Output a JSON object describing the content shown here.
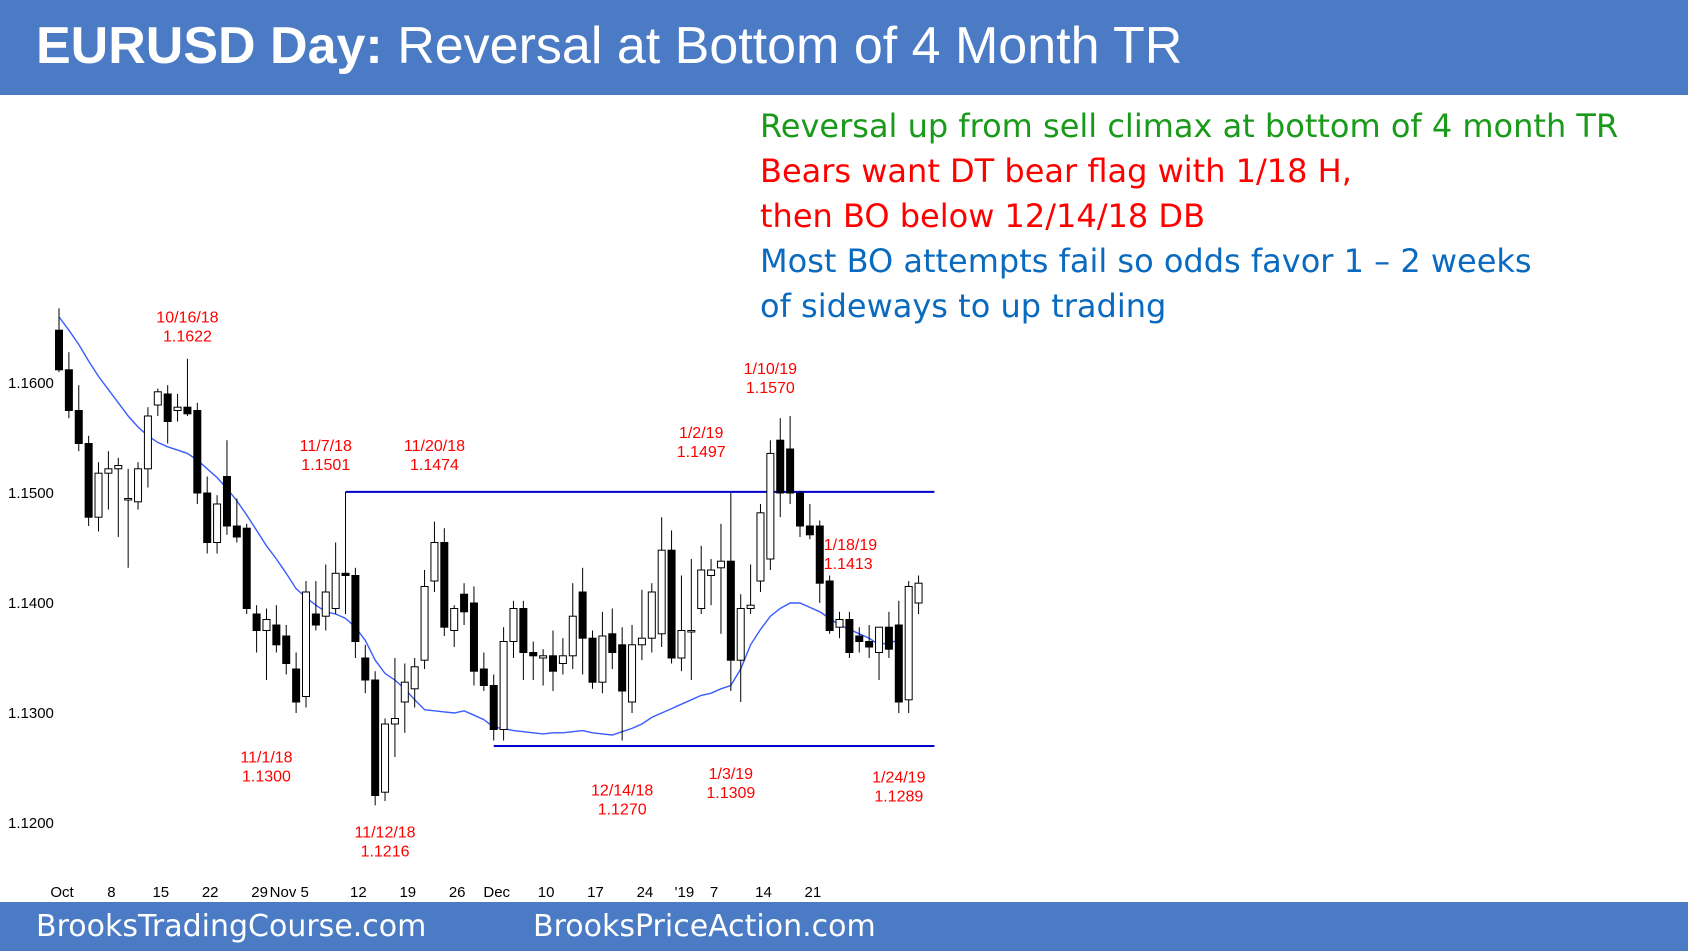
{
  "header": {
    "symbol": "EURUSD Day:",
    "title": "Reversal at Bottom of 4 Month TR"
  },
  "footer": {
    "left": "BrooksTradingCourse.com",
    "right": "BrooksPriceAction.com"
  },
  "notes": [
    {
      "text": "Reversal up from sell climax at bottom of 4 month TR",
      "color": "#1a9a1a"
    },
    {
      "text": "Bears want DT bear flag with 1/18 H,",
      "color": "#ff0000"
    },
    {
      "text": "then BO below 12/14/18 DB",
      "color": "#ff0000"
    },
    {
      "text": "Most BO attempts fail so odds favor 1 – 2 weeks",
      "color": "#0a6abf"
    },
    {
      "text": "of sideways to up trading",
      "color": "#0a6abf"
    }
  ],
  "chart_data": {
    "type": "candlestick",
    "y_ticks": [
      "1.1200",
      "1.1300",
      "1.1400",
      "1.1500",
      "1.1600"
    ],
    "ylim": [
      1.114,
      1.169
    ],
    "x_labels": [
      {
        "i": 0,
        "label": "Oct"
      },
      {
        "i": 5,
        "label": "8"
      },
      {
        "i": 10,
        "label": "15"
      },
      {
        "i": 15,
        "label": "22"
      },
      {
        "i": 20,
        "label": "29"
      },
      {
        "i": 23,
        "label": "Nov 5"
      },
      {
        "i": 30,
        "label": "12"
      },
      {
        "i": 35,
        "label": "19"
      },
      {
        "i": 40,
        "label": "26"
      },
      {
        "i": 44,
        "label": "Dec"
      },
      {
        "i": 49,
        "label": "10"
      },
      {
        "i": 54,
        "label": "17"
      },
      {
        "i": 59,
        "label": "24"
      },
      {
        "i": 63,
        "label": "'19"
      },
      {
        "i": 66,
        "label": "7"
      },
      {
        "i": 71,
        "label": "14"
      },
      {
        "i": 76,
        "label": "21"
      }
    ],
    "candles": [
      [
        1.1648,
        1.1668,
        1.161,
        1.1612
      ],
      [
        1.1612,
        1.1628,
        1.1568,
        1.1575
      ],
      [
        1.1575,
        1.1598,
        1.1538,
        1.1545
      ],
      [
        1.1545,
        1.1552,
        1.147,
        1.1478
      ],
      [
        1.1478,
        1.1528,
        1.1465,
        1.1518
      ],
      [
        1.1518,
        1.1538,
        1.1485,
        1.1522
      ],
      [
        1.1522,
        1.1532,
        1.146,
        1.1525
      ],
      [
        1.1495,
        1.1522,
        1.1432,
        1.1495
      ],
      [
        1.1492,
        1.1528,
        1.1485,
        1.1522
      ],
      [
        1.1522,
        1.1578,
        1.1505,
        1.157
      ],
      [
        1.158,
        1.1595,
        1.157,
        1.1592
      ],
      [
        1.159,
        1.1598,
        1.1545,
        1.1565
      ],
      [
        1.1575,
        1.159,
        1.1565,
        1.1578
      ],
      [
        1.1578,
        1.1622,
        1.157,
        1.1572
      ],
      [
        1.1575,
        1.1582,
        1.149,
        1.15
      ],
      [
        1.15,
        1.1515,
        1.1445,
        1.1455
      ],
      [
        1.1455,
        1.1498,
        1.1445,
        1.149
      ],
      [
        1.1515,
        1.1548,
        1.1462,
        1.147
      ],
      [
        1.147,
        1.1495,
        1.1455,
        1.146
      ],
      [
        1.1468,
        1.1472,
        1.139,
        1.1395
      ],
      [
        1.139,
        1.1398,
        1.1355,
        1.1375
      ],
      [
        1.1375,
        1.1395,
        1.133,
        1.1385
      ],
      [
        1.138,
        1.1398,
        1.1355,
        1.1362
      ],
      [
        1.137,
        1.138,
        1.1335,
        1.1345
      ],
      [
        1.134,
        1.1355,
        1.13,
        1.131
      ],
      [
        1.1315,
        1.142,
        1.1305,
        1.141
      ],
      [
        1.139,
        1.142,
        1.1375,
        1.138
      ],
      [
        1.1388,
        1.1435,
        1.1375,
        1.141
      ],
      [
        1.1395,
        1.1455,
        1.139,
        1.1427
      ],
      [
        1.1427,
        1.1501,
        1.139,
        1.1425
      ],
      [
        1.1425,
        1.1432,
        1.135,
        1.1365
      ],
      [
        1.135,
        1.1362,
        1.1318,
        1.133
      ],
      [
        1.133,
        1.1338,
        1.1216,
        1.1225
      ],
      [
        1.1228,
        1.1295,
        1.122,
        1.129
      ],
      [
        1.129,
        1.135,
        1.126,
        1.1295
      ],
      [
        1.131,
        1.1345,
        1.1282,
        1.1328
      ],
      [
        1.1322,
        1.135,
        1.1305,
        1.1342
      ],
      [
        1.1348,
        1.143,
        1.134,
        1.1415
      ],
      [
        1.142,
        1.1474,
        1.141,
        1.1455
      ],
      [
        1.1455,
        1.1468,
        1.137,
        1.1378
      ],
      [
        1.1375,
        1.1398,
        1.136,
        1.1395
      ],
      [
        1.1408,
        1.1418,
        1.138,
        1.1392
      ],
      [
        1.14,
        1.1415,
        1.1325,
        1.1338
      ],
      [
        1.134,
        1.1355,
        1.132,
        1.1325
      ],
      [
        1.1325,
        1.1335,
        1.1275,
        1.1285
      ],
      [
        1.1285,
        1.1378,
        1.1275,
        1.1365
      ],
      [
        1.1365,
        1.1402,
        1.135,
        1.1395
      ],
      [
        1.1395,
        1.1402,
        1.133,
        1.1355
      ],
      [
        1.1355,
        1.1365,
        1.133,
        1.1352
      ],
      [
        1.135,
        1.1358,
        1.1325,
        1.1352
      ],
      [
        1.1352,
        1.1375,
        1.132,
        1.1338
      ],
      [
        1.1345,
        1.1368,
        1.1335,
        1.1352
      ],
      [
        1.1352,
        1.1418,
        1.134,
        1.1388
      ],
      [
        1.141,
        1.1432,
        1.1335,
        1.1368
      ],
      [
        1.1368,
        1.1375,
        1.1322,
        1.1328
      ],
      [
        1.1328,
        1.1392,
        1.1318,
        1.137
      ],
      [
        1.1372,
        1.1395,
        1.134,
        1.1355
      ],
      [
        1.1362,
        1.1378,
        1.1275,
        1.132
      ],
      [
        1.131,
        1.138,
        1.13,
        1.1362
      ],
      [
        1.1362,
        1.1412,
        1.1348,
        1.1368
      ],
      [
        1.1368,
        1.1418,
        1.1355,
        1.141
      ],
      [
        1.1372,
        1.1478,
        1.136,
        1.1448
      ],
      [
        1.1448,
        1.1466,
        1.1345,
        1.135
      ],
      [
        1.135,
        1.1425,
        1.1338,
        1.1375
      ],
      [
        1.1375,
        1.144,
        1.133,
        1.1375
      ],
      [
        1.1395,
        1.1452,
        1.139,
        1.143
      ],
      [
        1.1425,
        1.144,
        1.1398,
        1.143
      ],
      [
        1.1432,
        1.1472,
        1.1372,
        1.1438
      ],
      [
        1.1438,
        1.15,
        1.132,
        1.1348
      ],
      [
        1.1348,
        1.1408,
        1.131,
        1.1395
      ],
      [
        1.1395,
        1.1435,
        1.139,
        1.1398
      ],
      [
        1.142,
        1.149,
        1.141,
        1.1482
      ],
      [
        1.144,
        1.1548,
        1.143,
        1.1536
      ],
      [
        1.1548,
        1.1568,
        1.1478,
        1.15
      ],
      [
        1.154,
        1.157,
        1.149,
        1.15
      ],
      [
        1.15,
        1.1502,
        1.146,
        1.147
      ],
      [
        1.147,
        1.149,
        1.1458,
        1.1462
      ],
      [
        1.147,
        1.1475,
        1.14,
        1.1418
      ],
      [
        1.142,
        1.1425,
        1.1372,
        1.1375
      ],
      [
        1.1378,
        1.1392,
        1.1368,
        1.1385
      ],
      [
        1.1385,
        1.1392,
        1.135,
        1.1355
      ],
      [
        1.137,
        1.1378,
        1.1355,
        1.1365
      ],
      [
        1.1365,
        1.138,
        1.135,
        1.136
      ],
      [
        1.1355,
        1.1375,
        1.133,
        1.1378
      ],
      [
        1.1378,
        1.1392,
        1.135,
        1.1358
      ],
      [
        1.138,
        1.1402,
        1.13,
        1.131
      ],
      [
        1.1312,
        1.142,
        1.13,
        1.1415
      ],
      [
        1.14,
        1.1425,
        1.139,
        1.1418
      ]
    ],
    "ema": [
      1.166,
      1.1648,
      1.1635,
      1.162,
      1.1606,
      1.1594,
      1.1582,
      1.157,
      1.156,
      1.1552,
      1.1546,
      1.1542,
      1.1539,
      1.1536,
      1.153,
      1.1522,
      1.1514,
      1.1504,
      1.1493,
      1.148,
      1.1466,
      1.1452,
      1.144,
      1.1427,
      1.1413,
      1.1405,
      1.1398,
      1.1392,
      1.139,
      1.1386,
      1.1378,
      1.1366,
      1.1348,
      1.1336,
      1.133,
      1.1322,
      1.1312,
      1.1303,
      1.1302,
      1.1301,
      1.13,
      1.1302,
      1.1298,
      1.1294,
      1.1287,
      1.1286,
      1.1284,
      1.1283,
      1.1282,
      1.1281,
      1.1282,
      1.1282,
      1.1283,
      1.1284,
      1.1282,
      1.1281,
      1.128,
      1.1283,
      1.1286,
      1.129,
      1.1296,
      1.13,
      1.1304,
      1.1308,
      1.1312,
      1.1316,
      1.1318,
      1.1322,
      1.1325,
      1.134,
      1.1362,
      1.1376,
      1.1388,
      1.1395,
      1.14,
      1.14,
      1.1396,
      1.1392,
      1.1386,
      1.138,
      1.1376,
      1.1372,
      1.1368,
      1.1362,
      1.1364,
      1.1366
    ],
    "lines": [
      {
        "y": 1.1501,
        "x_from": 29,
        "x_to": 88
      },
      {
        "y": 1.127,
        "x_from": 44,
        "x_to": 88
      }
    ],
    "annotations": [
      {
        "i": 13,
        "date": "10/16/18",
        "price": "1.1622",
        "pos": "above",
        "label_y": 1.1655
      },
      {
        "i": 27,
        "date": "11/7/18",
        "price": "1.1501",
        "pos": "above",
        "label_y": 1.1538
      },
      {
        "i": 38,
        "date": "11/20/18",
        "price": "1.1474",
        "pos": "above",
        "label_y": 1.1538
      },
      {
        "i": 65,
        "date": "1/2/19",
        "price": "1.1497",
        "pos": "above",
        "label_y": 1.155
      },
      {
        "i": 72,
        "date": "1/10/19",
        "price": "1.1570",
        "pos": "above",
        "label_y": 1.1608
      },
      {
        "i": 77,
        "date": "1/18/19",
        "price": "1.1413",
        "pos": "right",
        "label_y": 1.1448
      },
      {
        "i": 21,
        "date": "11/1/18",
        "price": "1.1300",
        "pos": "below",
        "label_y": 1.1255
      },
      {
        "i": 33,
        "date": "11/12/18",
        "price": "1.1216",
        "pos": "below",
        "label_y": 1.1187
      },
      {
        "i": 57,
        "date": "12/14/18",
        "price": "1.1270",
        "pos": "below",
        "label_y": 1.1225
      },
      {
        "i": 68,
        "date": "1/3/19",
        "price": "1.1309",
        "pos": "below",
        "label_y": 1.124
      },
      {
        "i": 85,
        "date": "1/24/19",
        "price": "1.1289",
        "pos": "below",
        "label_y": 1.1237
      }
    ]
  }
}
